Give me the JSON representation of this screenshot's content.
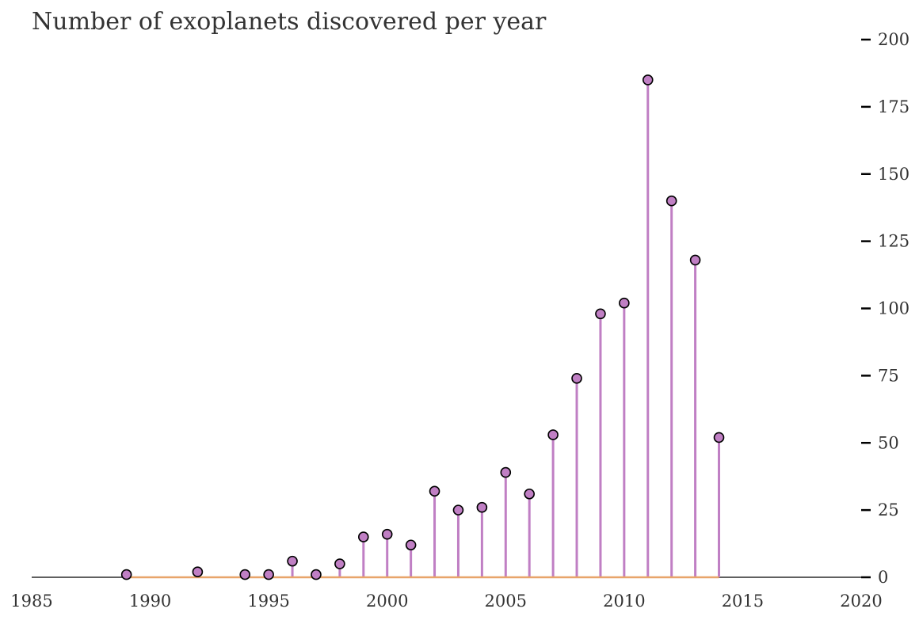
{
  "chart_data": {
    "type": "stem",
    "title": "Number of exoplanets discovered per year",
    "xlabel": "",
    "ylabel": "",
    "xlim": [
      1985,
      2020
    ],
    "ylim": [
      0,
      200
    ],
    "x_ticks": [
      "1985",
      "1990",
      "1995",
      "2000",
      "2005",
      "2010",
      "2015",
      "2020"
    ],
    "y_ticks": [
      "0",
      "25",
      "50",
      "75",
      "100",
      "125",
      "150",
      "175",
      "200"
    ],
    "y_axis_position": "right",
    "grid": false,
    "series": [
      {
        "x": [
          1989,
          1992,
          1994,
          1995,
          1996,
          1997,
          1998,
          1999,
          2000,
          2001,
          2002,
          2003,
          2004,
          2005,
          2006,
          2007,
          2008,
          2009,
          2010,
          2011,
          2012,
          2013,
          2014
        ],
        "values": [
          1,
          2,
          1,
          1,
          6,
          1,
          5,
          15,
          16,
          12,
          32,
          25,
          26,
          39,
          31,
          53,
          74,
          98,
          102,
          185,
          140,
          118,
          52
        ]
      }
    ],
    "colors": {
      "stem": "#c07fc4",
      "marker_fill": "#c07fc4",
      "marker_edge": "#000000",
      "baseline": "#e8a46a",
      "text": "#333333"
    }
  }
}
